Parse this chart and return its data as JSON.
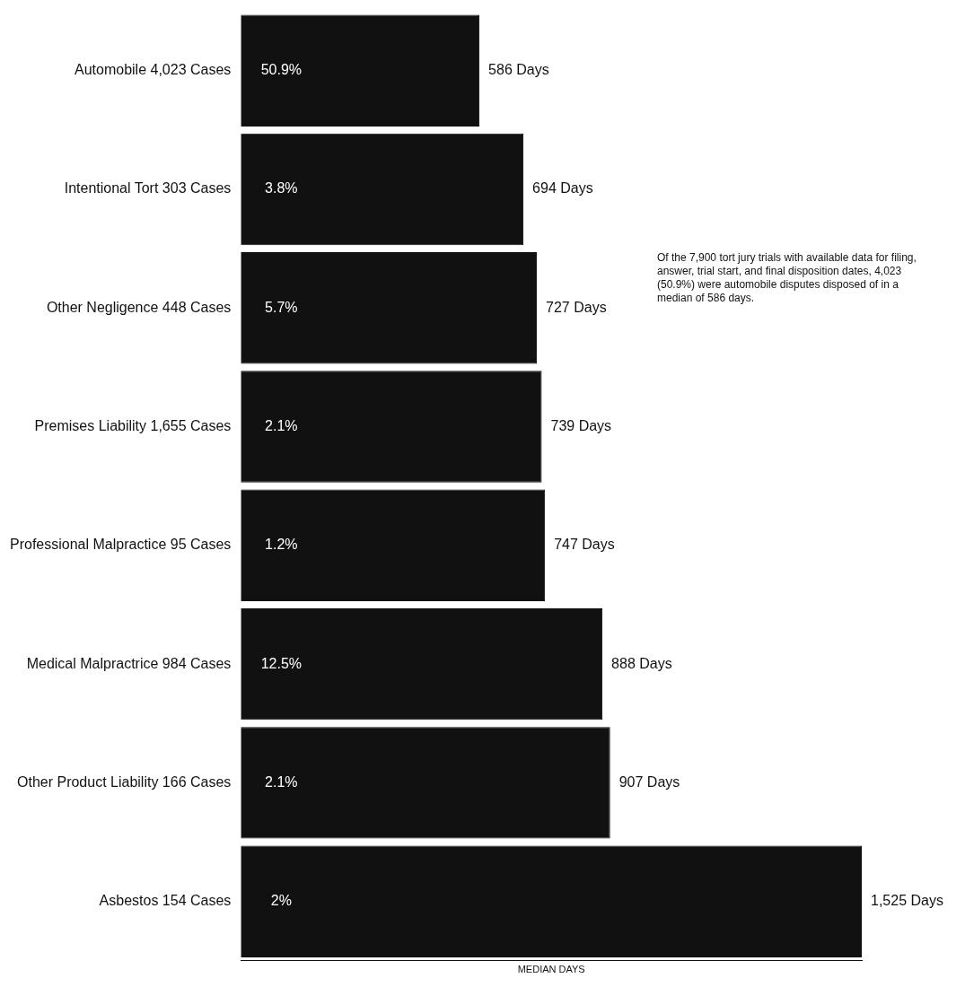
{
  "chart_data": {
    "type": "bar",
    "orientation": "horizontal",
    "xlabel": "MEDIAN DAYS",
    "categories": [
      "Automobile 4,023 Cases",
      "Intentional Tort 303 Cases",
      "Other Negligence 448 Cases",
      "Premises Liability 1,655 Cases",
      "Professional Malpractice 95 Cases",
      "Medical Malpractrice 984 Cases",
      "Other Product Liability 166 Cases",
      "Asbestos 154 Cases"
    ],
    "values": [
      586,
      694,
      727,
      739,
      747,
      888,
      907,
      1525
    ],
    "value_labels": [
      "586 Days",
      "694 Days",
      "727 Days",
      "739 Days",
      "747 Days",
      "888 Days",
      "907 Days",
      "1,525 Days"
    ],
    "color": "#111111",
    "xlim": [
      0,
      1525
    ],
    "tick_labels": "y",
    "legend": false,
    "annotations": [
      "50.9%",
      "3.8%",
      "5.7%",
      "2.1%",
      "1.2%",
      "12.5%",
      "2.1%",
      "2%",
      "Of the 7,900 tort jury trials with available data for filing, answer, trial start, and final disposition dates, 4,023 (50.9%) were automobile disputes disposed of in a median of 586 days."
    ]
  }
}
